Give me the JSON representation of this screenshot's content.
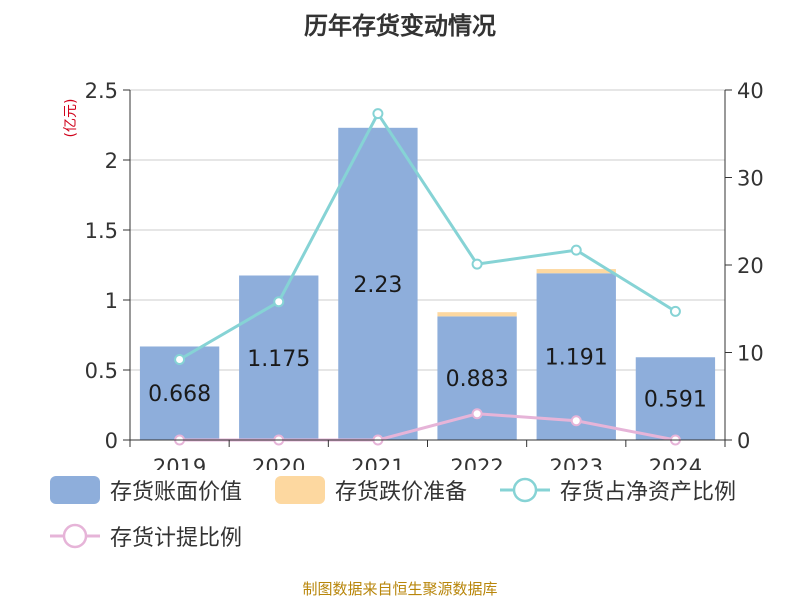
{
  "title": "历年存货变动情况",
  "footer": "制图数据来自恒生聚源数据库",
  "colors": {
    "book_value": "#8eaedb",
    "reserve": "#fdd8a0",
    "ratio_net_assets": "#86d3d5",
    "provision_ratio": "#e6b4d8",
    "unit_label": "#d0021b"
  },
  "chart_data": {
    "type": "bar",
    "title": "历年存货变动情况",
    "categories": [
      "2019",
      "2020",
      "2021",
      "2022",
      "2023",
      "2024"
    ],
    "y_left": {
      "unit": "(亿元)",
      "ylim": [
        0,
        2.5
      ],
      "ticks": [
        "0",
        "0.5",
        "1",
        "1.5",
        "2",
        "2.5"
      ]
    },
    "y_right": {
      "ylim": [
        0,
        40
      ],
      "ticks": [
        "0",
        "10",
        "20",
        "30",
        "40"
      ]
    },
    "series": [
      {
        "name": "存货账面价值",
        "kind": "bar",
        "axis": "left",
        "values": [
          0.668,
          1.175,
          2.23,
          0.883,
          1.191,
          0.591
        ],
        "labels": [
          "0.668",
          "1.175",
          "2.23",
          "0.883",
          "1.191",
          "0.591"
        ]
      },
      {
        "name": "存货跌价准备",
        "kind": "bar-stack",
        "axis": "left",
        "values": [
          0,
          0,
          0,
          0.03,
          0.03,
          0
        ]
      },
      {
        "name": "存货占净资产比例",
        "kind": "line",
        "axis": "right",
        "values": [
          9.2,
          15.8,
          37.3,
          20.1,
          21.7,
          14.7
        ]
      },
      {
        "name": "存货计提比例",
        "kind": "line",
        "axis": "right",
        "values": [
          0,
          0,
          0,
          3.0,
          2.2,
          0
        ]
      }
    ],
    "grid": true,
    "legend_position": "bottom"
  }
}
